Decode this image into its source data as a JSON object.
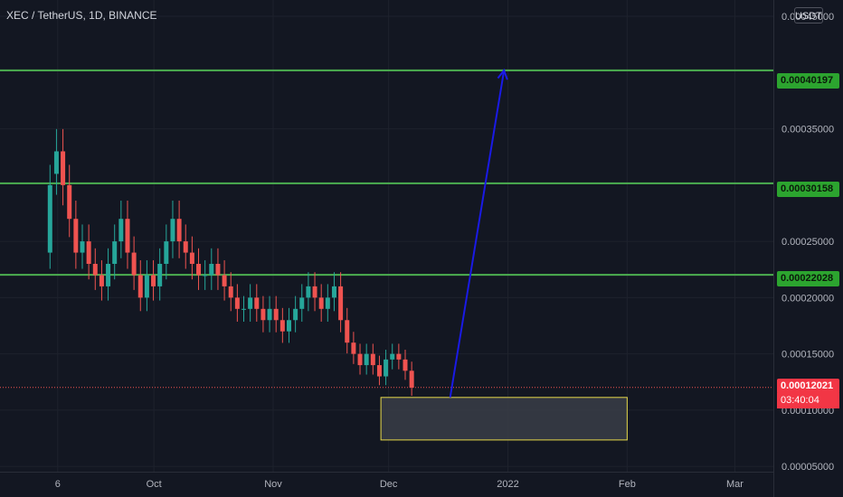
{
  "header": {
    "title": "XEC / TetherUS, 1D, BINANCE",
    "currency_button": "USDT"
  },
  "price_tags": {
    "level_1": "0.00040197",
    "level_2": "0.00030158",
    "level_3": "0.00022028",
    "current": "0.00012021",
    "countdown": "03:40:04"
  },
  "colors": {
    "background": "#131722",
    "grid": "#1e222d",
    "up": "#26a69a",
    "down": "#ef5350",
    "level_line": "#4caf50",
    "arrow": "#1a1ae6",
    "box_border": "#e6d84a",
    "box_fill": "#3a3d47"
  },
  "chart_data": {
    "type": "candlestick",
    "pair": "XEC / TetherUS",
    "interval": "1D",
    "exchange": "BINANCE",
    "x_axis": {
      "tick_labels": [
        "6",
        "Oct",
        "Nov",
        "Dec",
        "2022",
        "Feb",
        "Mar"
      ],
      "tick_dates": [
        "2021-09-06",
        "2021-10-01",
        "2021-11-01",
        "2021-12-01",
        "2022-01-01",
        "2022-02-01",
        "2022-03-01"
      ],
      "range": [
        "2021-08-22",
        "2022-03-11"
      ]
    },
    "y_axis": {
      "tick_labels": [
        "0.00045000",
        "0.00035000",
        "0.00025000",
        "0.00020000",
        "0.00015000",
        "0.00010000",
        "0.00005000"
      ],
      "tick_values": [
        0.00045,
        0.00035,
        0.00025,
        0.0002,
        0.00015,
        0.0001,
        5e-05
      ],
      "range": [
        4.53e-05,
        0.0004645
      ],
      "scale": "linear",
      "side": "right"
    },
    "grid": true,
    "horizontal_levels": [
      0.00040197,
      0.00030158,
      0.00022028
    ],
    "last_price": 0.00012021,
    "zone_box": {
      "date_from": "2021-11-29",
      "date_to": "2022-02-01",
      "price_low": 7.35e-05,
      "price_high": 0.0001113
    },
    "arrow": {
      "from_date": "2021-12-17",
      "from_price": 0.0001113,
      "to_date": "2021-12-31",
      "to_price": 0.000402
    },
    "candles_summary": {
      "first_date": "2021-09-04",
      "last_date": "2021-12-07",
      "opens_closes": [
        [
          0.00024,
          0.0003
        ],
        [
          0.00031,
          0.00033
        ],
        [
          0.00033,
          0.0003
        ],
        [
          0.0003,
          0.00027
        ],
        [
          0.00027,
          0.00024
        ],
        [
          0.00024,
          0.00025
        ],
        [
          0.00025,
          0.00023
        ],
        [
          0.00023,
          0.00022
        ],
        [
          0.00022,
          0.00021
        ],
        [
          0.00021,
          0.00023
        ],
        [
          0.00023,
          0.00025
        ],
        [
          0.00025,
          0.00027
        ],
        [
          0.00027,
          0.00024
        ],
        [
          0.00024,
          0.00022
        ],
        [
          0.00022,
          0.0002
        ],
        [
          0.0002,
          0.00022
        ],
        [
          0.00022,
          0.00021
        ],
        [
          0.00021,
          0.00023
        ],
        [
          0.00023,
          0.00025
        ],
        [
          0.00025,
          0.00027
        ],
        [
          0.00027,
          0.00025
        ],
        [
          0.00025,
          0.00024
        ],
        [
          0.00024,
          0.00023
        ],
        [
          0.00023,
          0.00022
        ],
        [
          0.00022,
          0.00022
        ],
        [
          0.00022,
          0.00023
        ],
        [
          0.00023,
          0.00022
        ],
        [
          0.00022,
          0.00021
        ],
        [
          0.00021,
          0.0002
        ],
        [
          0.0002,
          0.00019
        ],
        [
          0.00019,
          0.00019
        ],
        [
          0.00019,
          0.0002
        ],
        [
          0.0002,
          0.00019
        ],
        [
          0.00019,
          0.00018
        ],
        [
          0.00018,
          0.00019
        ],
        [
          0.00019,
          0.00018
        ],
        [
          0.00018,
          0.00017
        ],
        [
          0.00017,
          0.00018
        ],
        [
          0.00018,
          0.00019
        ],
        [
          0.00019,
          0.0002
        ],
        [
          0.0002,
          0.00021
        ],
        [
          0.00021,
          0.0002
        ],
        [
          0.0002,
          0.00019
        ],
        [
          0.00019,
          0.0002
        ],
        [
          0.0002,
          0.00021
        ],
        [
          0.00021,
          0.00018
        ],
        [
          0.00018,
          0.00016
        ],
        [
          0.00016,
          0.00015
        ],
        [
          0.00015,
          0.00014
        ],
        [
          0.00014,
          0.00015
        ],
        [
          0.00015,
          0.00014
        ],
        [
          0.00014,
          0.00013
        ],
        [
          0.00013,
          0.000145
        ],
        [
          0.000145,
          0.00015
        ],
        [
          0.00015,
          0.000145
        ],
        [
          0.000145,
          0.000135
        ],
        [
          0.000135,
          0.00012
        ]
      ]
    }
  }
}
